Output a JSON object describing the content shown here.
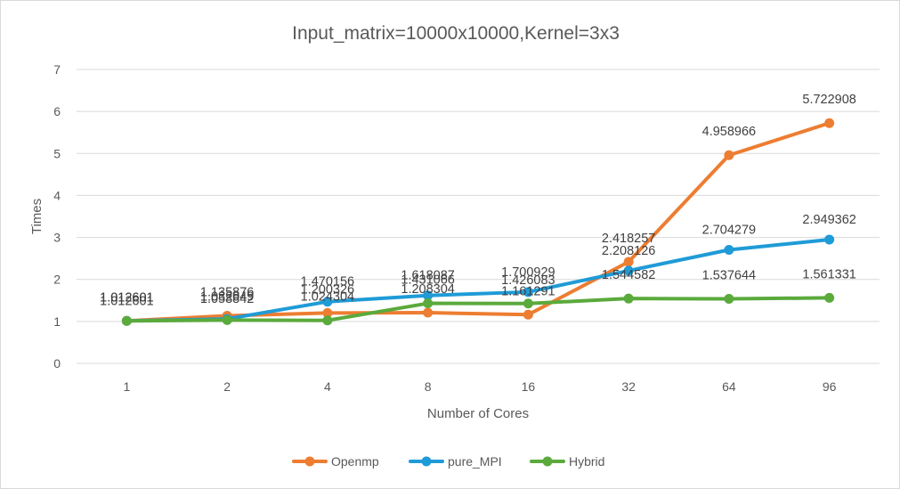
{
  "chart_data": {
    "type": "line",
    "title": "Input_matrix=10000x10000,Kernel=3x3",
    "xlabel": "Number of Cores",
    "ylabel": "Times",
    "categories": [
      "1",
      "2",
      "4",
      "8",
      "16",
      "32",
      "64",
      "96"
    ],
    "ylim": [
      0,
      7
    ],
    "yticks": [
      "0",
      "1",
      "2",
      "3",
      "4",
      "5",
      "6",
      "7"
    ],
    "grid": true,
    "legend_position": "bottom",
    "series": [
      {
        "name": "Openmp",
        "color": "#ed7d31",
        "values": [
          1.012601,
          1.135876,
          1.200326,
          1.208304,
          1.161291,
          2.418257,
          4.958966,
          5.722908
        ],
        "labels": [
          "1.012601",
          "1.135876",
          "1.200326",
          "1.208304",
          "1.161291",
          "2.418257",
          "4.958966",
          "5.722908"
        ]
      },
      {
        "name": "pure_MPI",
        "color": "#1f9bd7",
        "values": [
          1.012601,
          1.058842,
          1.470156,
          1.618087,
          1.700929,
          2.208126,
          2.704279,
          2.949362
        ],
        "labels": [
          "1.012601",
          "1.058842",
          "1.470156",
          "1.618087",
          "1.700929",
          "2.208126",
          "2.704279",
          "2.949362"
        ]
      },
      {
        "name": "Hybrid",
        "color": "#5aaa3c",
        "values": [
          1.012601,
          1.032049,
          1.024304,
          1.431066,
          1.426083,
          1.544582,
          1.537644,
          1.561331
        ],
        "labels": [
          "1.012601",
          "1.032049",
          "1.024304",
          "1.431066",
          "1.426083",
          "1.544582",
          "1.537644",
          "1.561331"
        ]
      }
    ]
  }
}
